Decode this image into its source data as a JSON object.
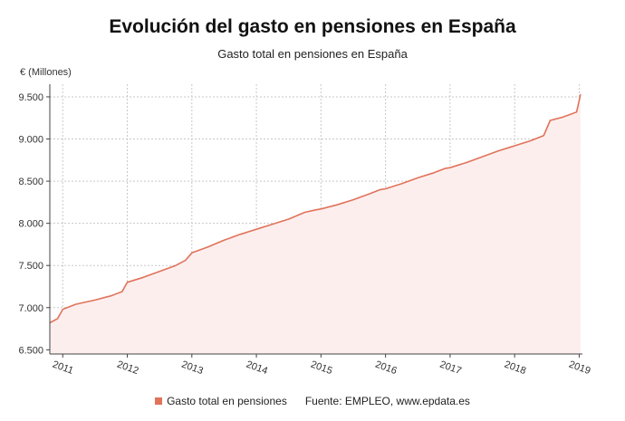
{
  "chart_data": {
    "type": "area",
    "title": "Evolución del gasto en pensiones en España",
    "subtitle": "Gasto total en pensiones en España",
    "y_unit": "€ (Millones)",
    "source": "Fuente: EMPLEO, www.epdata.es",
    "ylim": [
      6450,
      9650
    ],
    "xlim": [
      2010.8,
      2019.05
    ],
    "y_ticks": [
      {
        "value": 6500,
        "label": "6.500"
      },
      {
        "value": 7000,
        "label": "7.000"
      },
      {
        "value": 7500,
        "label": "7.500"
      },
      {
        "value": 8000,
        "label": "8.000"
      },
      {
        "value": 8500,
        "label": "8.500"
      },
      {
        "value": 9000,
        "label": "9.000"
      },
      {
        "value": 9500,
        "label": "9.500"
      }
    ],
    "x_ticks": [
      {
        "value": 2011,
        "label": "2011"
      },
      {
        "value": 2012,
        "label": "2012"
      },
      {
        "value": 2013,
        "label": "2013"
      },
      {
        "value": 2014,
        "label": "2014"
      },
      {
        "value": 2015,
        "label": "2015"
      },
      {
        "value": 2016,
        "label": "2016"
      },
      {
        "value": 2017,
        "label": "2017"
      },
      {
        "value": 2018,
        "label": "2018"
      },
      {
        "value": 2019,
        "label": "2019"
      }
    ],
    "grid": true,
    "colors": {
      "line": "#e0735a",
      "fill": "#fdeeee",
      "grid": "#c8c8c8"
    },
    "series": [
      {
        "name": "Gasto total en pensiones",
        "x": [
          2010.8,
          2010.92,
          2011.0,
          2011.2,
          2011.5,
          2011.75,
          2011.92,
          2012.0,
          2012.25,
          2012.5,
          2012.75,
          2012.9,
          2013.0,
          2013.25,
          2013.5,
          2013.75,
          2013.92,
          2014.0,
          2014.25,
          2014.5,
          2014.75,
          2014.92,
          2015.0,
          2015.25,
          2015.5,
          2015.75,
          2015.92,
          2016.0,
          2016.25,
          2016.5,
          2016.75,
          2016.92,
          2017.0,
          2017.25,
          2017.5,
          2017.75,
          2017.92,
          2018.0,
          2018.25,
          2018.45,
          2018.55,
          2018.75,
          2018.96,
          2019.02
        ],
        "y": [
          6820,
          6870,
          6980,
          7040,
          7090,
          7140,
          7190,
          7300,
          7360,
          7430,
          7500,
          7560,
          7650,
          7720,
          7800,
          7870,
          7910,
          7930,
          7990,
          8050,
          8130,
          8160,
          8170,
          8220,
          8280,
          8350,
          8400,
          8410,
          8470,
          8540,
          8600,
          8650,
          8660,
          8720,
          8790,
          8860,
          8900,
          8920,
          8980,
          9040,
          9220,
          9260,
          9320,
          9530
        ]
      }
    ]
  },
  "legend": {
    "series_label": "Gasto total en pensiones",
    "source": "Fuente: EMPLEO, www.epdata.es"
  }
}
